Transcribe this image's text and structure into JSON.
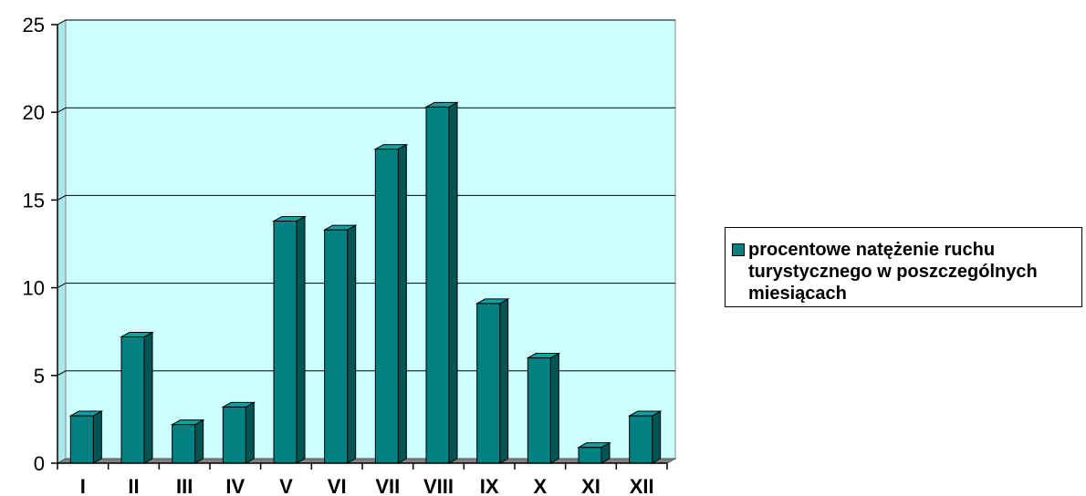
{
  "chart_data": {
    "type": "bar",
    "categories": [
      "I",
      "II",
      "III",
      "IV",
      "V",
      "VI",
      "VII",
      "VIII",
      "IX",
      "X",
      "XI",
      "XII"
    ],
    "series": [
      {
        "name": "procentowe natężenie ruchu turystycznego w poszczególnych miesiącach",
        "values": [
          2.7,
          7.2,
          2.2,
          3.2,
          13.8,
          13.3,
          17.9,
          20.3,
          9.1,
          6.0,
          0.9,
          2.7
        ]
      }
    ],
    "yticks": [
      "0",
      "5",
      "10",
      "15",
      "20",
      "25"
    ],
    "ylim": [
      0,
      25
    ],
    "title": "",
    "xlabel": "",
    "ylabel": "",
    "grid": true,
    "legend_position": "right",
    "colors": {
      "bar_front": "#008080",
      "bar_side": "#005555",
      "bar_top": "#14a0a0",
      "plot_background": "#ccffff",
      "floor": "#808080",
      "gridline": "#000000"
    }
  },
  "legend": {
    "label": "procentowe natężenie ruchu turystycznego w poszczególnych miesiącach"
  }
}
